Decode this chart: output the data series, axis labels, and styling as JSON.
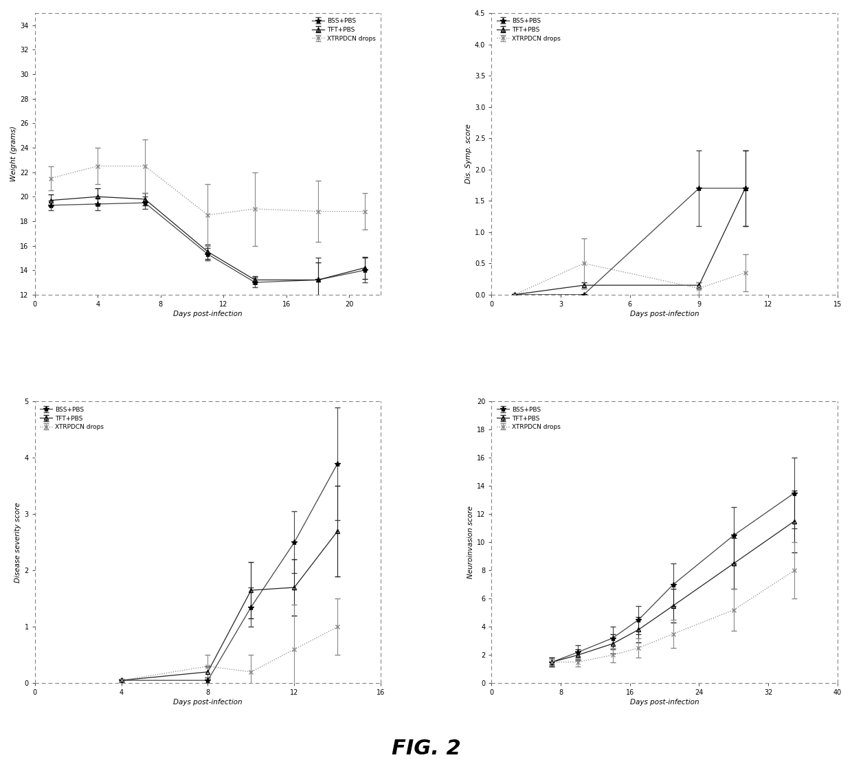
{
  "fig_title": "FIG. 2",
  "legend_labels": [
    "BSS+PBS",
    "TFT+PBS",
    "XTRPDCN drops"
  ],
  "panel_tl": {
    "xlabel": "Days post-infection",
    "ylabel": "Weight (grams)",
    "ylim": [
      12,
      35
    ],
    "yticks": [
      12,
      14,
      16,
      18,
      20,
      22,
      24,
      26,
      28,
      30,
      32,
      34
    ],
    "xlim": [
      0,
      22
    ],
    "xticks": [
      0,
      4,
      8,
      12,
      16,
      20
    ],
    "legend_loc": "upper right",
    "series": [
      {
        "x": [
          1,
          4,
          7,
          11,
          14,
          18,
          21
        ],
        "y": [
          19.3,
          19.4,
          19.5,
          15.3,
          13.0,
          13.2,
          14.0
        ],
        "yerr": [
          0.4,
          0.5,
          0.5,
          0.5,
          0.4,
          1.8,
          1.0
        ],
        "marker": "*",
        "linestyle": "-",
        "color": "#444444"
      },
      {
        "x": [
          1,
          4,
          7,
          11,
          14,
          18,
          21
        ],
        "y": [
          19.7,
          20.0,
          19.8,
          15.5,
          13.2,
          13.2,
          14.2
        ],
        "yerr": [
          0.5,
          0.7,
          0.5,
          0.6,
          0.3,
          1.4,
          0.9
        ],
        "marker": "^",
        "linestyle": "-",
        "color": "#222222"
      },
      {
        "x": [
          1,
          4,
          7,
          11,
          14,
          18,
          21
        ],
        "y": [
          21.5,
          22.5,
          22.5,
          18.5,
          19.0,
          18.8,
          18.8
        ],
        "yerr": [
          1.0,
          1.5,
          2.2,
          2.5,
          3.0,
          2.5,
          1.5
        ],
        "marker": "x",
        "linestyle": ":",
        "color": "#888888"
      }
    ]
  },
  "panel_tr": {
    "xlabel": "Days post-infection",
    "ylabel": "Dis. Symp. score",
    "ylim": [
      0.0,
      4.5
    ],
    "yticks": [
      0.0,
      0.5,
      1.0,
      1.5,
      2.0,
      2.5,
      3.0,
      3.5,
      4.0,
      4.5
    ],
    "xlim": [
      0,
      15
    ],
    "xticks": [
      0,
      3,
      6,
      9,
      12,
      15
    ],
    "legend_loc": "upper left",
    "series": [
      {
        "x": [
          1,
          4,
          9,
          11
        ],
        "y": [
          0.0,
          0.0,
          1.7,
          1.7
        ],
        "yerr": [
          0.0,
          0.0,
          0.6,
          0.6
        ],
        "marker": "*",
        "linestyle": "-",
        "color": "#444444"
      },
      {
        "x": [
          1,
          4,
          9,
          11
        ],
        "y": [
          0.0,
          0.15,
          0.15,
          1.7
        ],
        "yerr": [
          0.0,
          0.05,
          0.05,
          0.6
        ],
        "marker": "^",
        "linestyle": "-",
        "color": "#222222"
      },
      {
        "x": [
          1,
          4,
          9,
          11
        ],
        "y": [
          0.0,
          0.5,
          0.1,
          0.35
        ],
        "yerr": [
          0.0,
          0.4,
          0.1,
          0.3
        ],
        "marker": "x",
        "linestyle": ":",
        "color": "#888888"
      }
    ]
  },
  "panel_bl": {
    "xlabel": "Days post-infection",
    "ylabel": "Disease severity score",
    "ylim": [
      0,
      5
    ],
    "yticks": [
      0,
      1,
      2,
      3,
      4,
      5
    ],
    "xlim": [
      0,
      15
    ],
    "xticks": [
      0,
      4,
      8,
      12,
      16
    ],
    "legend_loc": "upper left",
    "series": [
      {
        "x": [
          4,
          8,
          10,
          12,
          14
        ],
        "y": [
          0.05,
          0.05,
          1.35,
          2.5,
          3.9
        ],
        "yerr": [
          0.02,
          0.05,
          0.35,
          0.55,
          1.0
        ],
        "marker": "*",
        "linestyle": "-",
        "color": "#444444"
      },
      {
        "x": [
          4,
          8,
          10,
          12,
          14
        ],
        "y": [
          0.05,
          0.2,
          1.65,
          1.7,
          2.7
        ],
        "yerr": [
          0.02,
          0.1,
          0.5,
          0.5,
          0.8
        ],
        "marker": "^",
        "linestyle": "-",
        "color": "#222222"
      },
      {
        "x": [
          4,
          8,
          10,
          12,
          14
        ],
        "y": [
          0.05,
          0.3,
          0.2,
          0.6,
          1.0
        ],
        "yerr": [
          0.02,
          0.2,
          0.3,
          0.8,
          0.5
        ],
        "marker": "x",
        "linestyle": ":",
        "color": "#888888"
      }
    ]
  },
  "panel_br": {
    "xlabel": "Days post-infection",
    "ylabel": "Neuroinvasion score",
    "ylim": [
      0,
      20
    ],
    "yticks": [
      0,
      2,
      4,
      6,
      8,
      10,
      12,
      14,
      16,
      18,
      20
    ],
    "xlim": [
      0,
      40
    ],
    "xticks": [
      0,
      8,
      16,
      24,
      32,
      40
    ],
    "legend_loc": "upper left",
    "series": [
      {
        "x": [
          7,
          10,
          14,
          17,
          21,
          28,
          35
        ],
        "y": [
          1.5,
          2.2,
          3.2,
          4.5,
          7.0,
          10.5,
          13.5
        ],
        "yerr": [
          0.3,
          0.5,
          0.8,
          1.0,
          1.5,
          2.0,
          2.5
        ],
        "marker": "*",
        "linestyle": "-",
        "color": "#444444"
      },
      {
        "x": [
          7,
          10,
          14,
          17,
          21,
          28,
          35
        ],
        "y": [
          1.5,
          2.0,
          2.8,
          3.8,
          5.5,
          8.5,
          11.5
        ],
        "yerr": [
          0.3,
          0.4,
          0.7,
          0.9,
          1.2,
          1.8,
          2.2
        ],
        "marker": "^",
        "linestyle": "-",
        "color": "#222222"
      },
      {
        "x": [
          7,
          10,
          14,
          17,
          21,
          28,
          35
        ],
        "y": [
          1.5,
          1.5,
          2.0,
          2.5,
          3.5,
          5.2,
          8.0
        ],
        "yerr": [
          0.2,
          0.3,
          0.5,
          0.7,
          1.0,
          1.5,
          2.0
        ],
        "marker": "x",
        "linestyle": ":",
        "color": "#888888"
      }
    ]
  }
}
